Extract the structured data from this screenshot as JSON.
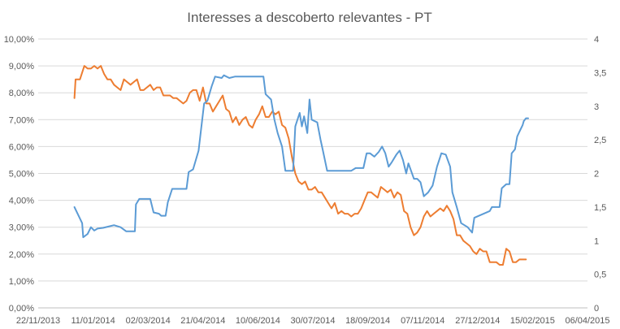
{
  "chart_data": {
    "type": "line",
    "title": "Interesses a descoberto relevantes - PT",
    "x_axis": {
      "type": "date",
      "range": [
        "2013-11-22",
        "2015-04-06"
      ],
      "tick_labels": [
        "22/11/2013",
        "11/01/2014",
        "02/03/2014",
        "21/04/2014",
        "10/06/2014",
        "30/07/2014",
        "18/09/2014",
        "07/11/2014",
        "27/12/2014",
        "15/02/2015",
        "06/04/2015"
      ]
    },
    "y_axis_left": {
      "range": [
        0,
        0.1
      ],
      "tick_labels": [
        "0,00%",
        "1,00%",
        "2,00%",
        "3,00%",
        "4,00%",
        "5,00%",
        "6,00%",
        "7,00%",
        "8,00%",
        "9,00%",
        "10,00%"
      ]
    },
    "y_axis_right": {
      "range": [
        0,
        4
      ],
      "tick_labels": [
        "0",
        "0,5",
        "1",
        "1,5",
        "2",
        "2,5",
        "3",
        "3,5",
        "4"
      ]
    },
    "grid": "horizontal",
    "legend": "none",
    "series": [
      {
        "axis": "left",
        "color": "#ED7D31",
        "points": [
          [
            "2013-12-25",
            0.078
          ],
          [
            "2013-12-26",
            0.085
          ],
          [
            "2013-12-30",
            0.085
          ],
          [
            "2014-01-03",
            0.09
          ],
          [
            "2014-01-06",
            0.089
          ],
          [
            "2014-01-09",
            0.089
          ],
          [
            "2014-01-12",
            0.09
          ],
          [
            "2014-01-15",
            0.089
          ],
          [
            "2014-01-18",
            0.09
          ],
          [
            "2014-01-21",
            0.087
          ],
          [
            "2014-01-24",
            0.085
          ],
          [
            "2014-01-27",
            0.085
          ],
          [
            "2014-01-30",
            0.083
          ],
          [
            "2014-02-02",
            0.082
          ],
          [
            "2014-02-05",
            0.081
          ],
          [
            "2014-02-08",
            0.085
          ],
          [
            "2014-02-11",
            0.084
          ],
          [
            "2014-02-14",
            0.083
          ],
          [
            "2014-02-17",
            0.084
          ],
          [
            "2014-02-20",
            0.085
          ],
          [
            "2014-02-23",
            0.081
          ],
          [
            "2014-02-26",
            0.081
          ],
          [
            "2014-03-01",
            0.082
          ],
          [
            "2014-03-04",
            0.083
          ],
          [
            "2014-03-07",
            0.081
          ],
          [
            "2014-03-10",
            0.082
          ],
          [
            "2014-03-13",
            0.082
          ],
          [
            "2014-03-16",
            0.079
          ],
          [
            "2014-03-19",
            0.079
          ],
          [
            "2014-03-22",
            0.079
          ],
          [
            "2014-03-25",
            0.078
          ],
          [
            "2014-03-28",
            0.078
          ],
          [
            "2014-03-31",
            0.077
          ],
          [
            "2014-04-03",
            0.076
          ],
          [
            "2014-04-06",
            0.077
          ],
          [
            "2014-04-09",
            0.08
          ],
          [
            "2014-04-12",
            0.081
          ],
          [
            "2014-04-15",
            0.081
          ],
          [
            "2014-04-18",
            0.077
          ],
          [
            "2014-04-21",
            0.082
          ],
          [
            "2014-04-24",
            0.076
          ],
          [
            "2014-04-27",
            0.076
          ],
          [
            "2014-04-30",
            0.073
          ],
          [
            "2014-05-03",
            0.075
          ],
          [
            "2014-05-06",
            0.077
          ],
          [
            "2014-05-09",
            0.079
          ],
          [
            "2014-05-12",
            0.074
          ],
          [
            "2014-05-15",
            0.073
          ],
          [
            "2014-05-18",
            0.069
          ],
          [
            "2014-05-21",
            0.071
          ],
          [
            "2014-05-24",
            0.068
          ],
          [
            "2014-05-27",
            0.07
          ],
          [
            "2014-05-30",
            0.071
          ],
          [
            "2014-06-02",
            0.068
          ],
          [
            "2014-06-05",
            0.067
          ],
          [
            "2014-06-08",
            0.07
          ],
          [
            "2014-06-11",
            0.072
          ],
          [
            "2014-06-14",
            0.075
          ],
          [
            "2014-06-17",
            0.071
          ],
          [
            "2014-06-20",
            0.071
          ],
          [
            "2014-06-23",
            0.073
          ],
          [
            "2014-06-26",
            0.072
          ],
          [
            "2014-06-29",
            0.073
          ],
          [
            "2014-07-02",
            0.068
          ],
          [
            "2014-07-05",
            0.067
          ],
          [
            "2014-07-08",
            0.063
          ],
          [
            "2014-07-11",
            0.056
          ],
          [
            "2014-07-14",
            0.05
          ],
          [
            "2014-07-17",
            0.047
          ],
          [
            "2014-07-20",
            0.046
          ],
          [
            "2014-07-23",
            0.047
          ],
          [
            "2014-07-26",
            0.044
          ],
          [
            "2014-07-29",
            0.044
          ],
          [
            "2014-08-01",
            0.045
          ],
          [
            "2014-08-04",
            0.043
          ],
          [
            "2014-08-07",
            0.043
          ],
          [
            "2014-08-10",
            0.041
          ],
          [
            "2014-08-13",
            0.039
          ],
          [
            "2014-08-16",
            0.037
          ],
          [
            "2014-08-19",
            0.039
          ],
          [
            "2014-08-22",
            0.035
          ],
          [
            "2014-08-25",
            0.036
          ],
          [
            "2014-08-28",
            0.035
          ],
          [
            "2014-08-31",
            0.035
          ],
          [
            "2014-09-03",
            0.034
          ],
          [
            "2014-09-06",
            0.035
          ],
          [
            "2014-09-09",
            0.035
          ],
          [
            "2014-09-12",
            0.037
          ],
          [
            "2014-09-15",
            0.04
          ],
          [
            "2014-09-18",
            0.043
          ],
          [
            "2014-09-21",
            0.043
          ],
          [
            "2014-09-24",
            0.042
          ],
          [
            "2014-09-27",
            0.041
          ],
          [
            "2014-09-30",
            0.045
          ],
          [
            "2014-10-03",
            0.044
          ],
          [
            "2014-10-06",
            0.043
          ],
          [
            "2014-10-09",
            0.044
          ],
          [
            "2014-10-12",
            0.041
          ],
          [
            "2014-10-15",
            0.043
          ],
          [
            "2014-10-18",
            0.042
          ],
          [
            "2014-10-21",
            0.036
          ],
          [
            "2014-10-24",
            0.035
          ],
          [
            "2014-10-27",
            0.03
          ],
          [
            "2014-10-30",
            0.027
          ],
          [
            "2014-11-02",
            0.028
          ],
          [
            "2014-11-05",
            0.03
          ],
          [
            "2014-11-08",
            0.034
          ],
          [
            "2014-11-11",
            0.036
          ],
          [
            "2014-11-14",
            0.034
          ],
          [
            "2014-11-17",
            0.035
          ],
          [
            "2014-11-20",
            0.036
          ],
          [
            "2014-11-23",
            0.037
          ],
          [
            "2014-11-26",
            0.036
          ],
          [
            "2014-11-29",
            0.038
          ],
          [
            "2014-12-02",
            0.036
          ],
          [
            "2014-12-05",
            0.033
          ],
          [
            "2014-12-08",
            0.027
          ],
          [
            "2014-12-11",
            0.027
          ],
          [
            "2014-12-14",
            0.025
          ],
          [
            "2014-12-17",
            0.024
          ],
          [
            "2014-12-20",
            0.023
          ],
          [
            "2014-12-23",
            0.021
          ],
          [
            "2014-12-26",
            0.02
          ],
          [
            "2014-12-29",
            0.022
          ],
          [
            "2015-01-01",
            0.021
          ],
          [
            "2015-01-04",
            0.021
          ],
          [
            "2015-01-07",
            0.017
          ],
          [
            "2015-01-10",
            0.017
          ],
          [
            "2015-01-13",
            0.017
          ],
          [
            "2015-01-16",
            0.016
          ],
          [
            "2015-01-19",
            0.016
          ],
          [
            "2015-01-22",
            0.022
          ],
          [
            "2015-01-25",
            0.021
          ],
          [
            "2015-01-28",
            0.017
          ],
          [
            "2015-01-31",
            0.017
          ],
          [
            "2015-02-03",
            0.018
          ],
          [
            "2015-02-06",
            0.018
          ],
          [
            "2015-02-09",
            0.018
          ]
        ]
      },
      {
        "axis": "right",
        "color": "#5B9BD5",
        "points": [
          [
            "2013-12-25",
            1.5
          ],
          [
            "2014-01-01",
            1.26
          ],
          [
            "2014-01-02",
            1.05
          ],
          [
            "2014-01-06",
            1.1
          ],
          [
            "2014-01-09",
            1.2
          ],
          [
            "2014-01-12",
            1.15
          ],
          [
            "2014-01-15",
            1.18
          ],
          [
            "2014-01-20",
            1.19
          ],
          [
            "2014-01-25",
            1.21
          ],
          [
            "2014-01-30",
            1.23
          ],
          [
            "2014-02-05",
            1.2
          ],
          [
            "2014-02-10",
            1.14
          ],
          [
            "2014-02-18",
            1.14
          ],
          [
            "2014-02-19",
            1.54
          ],
          [
            "2014-02-22",
            1.62
          ],
          [
            "2014-03-04",
            1.62
          ],
          [
            "2014-03-07",
            1.42
          ],
          [
            "2014-03-12",
            1.4
          ],
          [
            "2014-03-14",
            1.37
          ],
          [
            "2014-03-18",
            1.37
          ],
          [
            "2014-03-20",
            1.57
          ],
          [
            "2014-03-24",
            1.77
          ],
          [
            "2014-04-06",
            1.77
          ],
          [
            "2014-04-08",
            2.02
          ],
          [
            "2014-04-12",
            2.06
          ],
          [
            "2014-04-17",
            2.34
          ],
          [
            "2014-04-19",
            2.62
          ],
          [
            "2014-04-22",
            3.04
          ],
          [
            "2014-04-25",
            3.08
          ],
          [
            "2014-04-29",
            3.3
          ],
          [
            "2014-05-02",
            3.44
          ],
          [
            "2014-05-08",
            3.42
          ],
          [
            "2014-05-10",
            3.46
          ],
          [
            "2014-05-15",
            3.42
          ],
          [
            "2014-05-20",
            3.44
          ],
          [
            "2014-06-15",
            3.44
          ],
          [
            "2014-06-17",
            3.18
          ],
          [
            "2014-06-22",
            3.1
          ],
          [
            "2014-06-25",
            2.8
          ],
          [
            "2014-06-28",
            2.6
          ],
          [
            "2014-07-02",
            2.4
          ],
          [
            "2014-07-05",
            2.04
          ],
          [
            "2014-07-12",
            2.04
          ],
          [
            "2014-07-14",
            2.7
          ],
          [
            "2014-07-18",
            2.9
          ],
          [
            "2014-07-20",
            2.7
          ],
          [
            "2014-07-22",
            2.85
          ],
          [
            "2014-07-25",
            2.6
          ],
          [
            "2014-07-27",
            3.1
          ],
          [
            "2014-07-29",
            2.8
          ],
          [
            "2014-08-03",
            2.76
          ],
          [
            "2014-08-06",
            2.5
          ],
          [
            "2014-08-08",
            2.35
          ],
          [
            "2014-08-12",
            2.04
          ],
          [
            "2014-09-03",
            2.04
          ],
          [
            "2014-09-07",
            2.08
          ],
          [
            "2014-09-14",
            2.08
          ],
          [
            "2014-09-17",
            2.3
          ],
          [
            "2014-09-20",
            2.3
          ],
          [
            "2014-09-24",
            2.25
          ],
          [
            "2014-09-28",
            2.32
          ],
          [
            "2014-10-01",
            2.4
          ],
          [
            "2014-10-04",
            2.3
          ],
          [
            "2014-10-07",
            2.1
          ],
          [
            "2014-10-10",
            2.17
          ],
          [
            "2014-10-14",
            2.28
          ],
          [
            "2014-10-17",
            2.34
          ],
          [
            "2014-10-20",
            2.2
          ],
          [
            "2014-10-23",
            2.0
          ],
          [
            "2014-10-25",
            2.15
          ],
          [
            "2014-10-30",
            1.92
          ],
          [
            "2014-11-02",
            1.92
          ],
          [
            "2014-11-05",
            1.87
          ],
          [
            "2014-11-08",
            1.66
          ],
          [
            "2014-11-12",
            1.72
          ],
          [
            "2014-11-16",
            1.82
          ],
          [
            "2014-11-20",
            2.1
          ],
          [
            "2014-11-24",
            2.3
          ],
          [
            "2014-11-28",
            2.28
          ],
          [
            "2014-12-02",
            2.1
          ],
          [
            "2014-12-04",
            1.72
          ],
          [
            "2014-12-08",
            1.5
          ],
          [
            "2014-12-12",
            1.26
          ],
          [
            "2014-12-18",
            1.2
          ],
          [
            "2014-12-22",
            1.12
          ],
          [
            "2014-12-24",
            1.34
          ],
          [
            "2015-01-07",
            1.44
          ],
          [
            "2015-01-09",
            1.5
          ],
          [
            "2015-01-16",
            1.5
          ],
          [
            "2015-01-18",
            1.78
          ],
          [
            "2015-01-22",
            1.84
          ],
          [
            "2015-01-25",
            1.84
          ],
          [
            "2015-01-27",
            2.3
          ],
          [
            "2015-01-30",
            2.36
          ],
          [
            "2015-02-01",
            2.55
          ],
          [
            "2015-02-03",
            2.62
          ],
          [
            "2015-02-06",
            2.72
          ],
          [
            "2015-02-07",
            2.78
          ],
          [
            "2015-02-09",
            2.82
          ],
          [
            "2015-02-11",
            2.82
          ]
        ]
      }
    ]
  }
}
